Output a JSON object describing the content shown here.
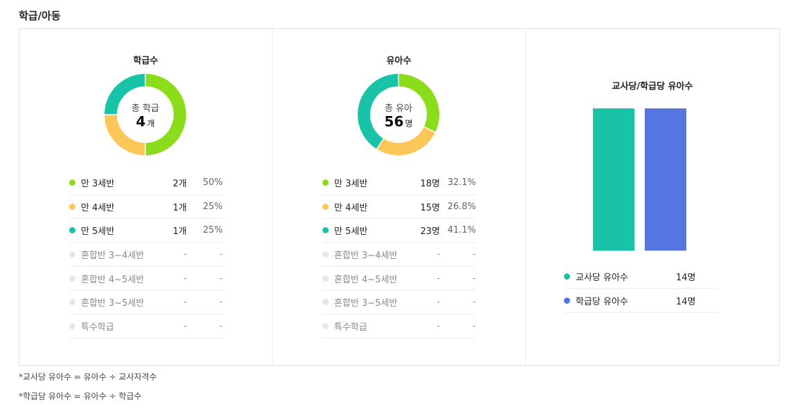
{
  "section_title": "학급/아동",
  "colors": {
    "green": "#8bdc1a",
    "yellow": "#fdc658",
    "teal": "#18c3a7",
    "blue": "#5576e0",
    "gray": "#e6e6e6"
  },
  "class_chart": {
    "title": "학급수",
    "center_label": "총 학급",
    "center_value": "4",
    "center_unit": "개",
    "items": [
      {
        "label": "만 3세반",
        "count": "2개",
        "percent": "50%",
        "color": "green",
        "value": 2
      },
      {
        "label": "만 4세반",
        "count": "1개",
        "percent": "25%",
        "color": "yellow",
        "value": 1
      },
      {
        "label": "만 5세반",
        "count": "1개",
        "percent": "25%",
        "color": "teal",
        "value": 1
      },
      {
        "label": "혼합반 3~4세반",
        "count": "-",
        "percent": "-",
        "color": "gray",
        "value": 0
      },
      {
        "label": "혼합반 4~5세반",
        "count": "-",
        "percent": "-",
        "color": "gray",
        "value": 0
      },
      {
        "label": "혼합반 3~5세반",
        "count": "-",
        "percent": "-",
        "color": "gray",
        "value": 0
      },
      {
        "label": "특수학급",
        "count": "-",
        "percent": "-",
        "color": "gray",
        "value": 0
      }
    ]
  },
  "child_chart": {
    "title": "유아수",
    "center_label": "총 유아",
    "center_value": "56",
    "center_unit": "명",
    "items": [
      {
        "label": "만 3세반",
        "count": "18명",
        "percent": "32.1%",
        "color": "green",
        "value": 18
      },
      {
        "label": "만 4세반",
        "count": "15명",
        "percent": "26.8%",
        "color": "yellow",
        "value": 15
      },
      {
        "label": "만 5세반",
        "count": "23명",
        "percent": "41.1%",
        "color": "teal",
        "value": 23
      },
      {
        "label": "혼합반 3~4세반",
        "count": "-",
        "percent": "-",
        "color": "gray",
        "value": 0
      },
      {
        "label": "혼합반 4~5세반",
        "count": "-",
        "percent": "-",
        "color": "gray",
        "value": 0
      },
      {
        "label": "혼합반 3~5세반",
        "count": "-",
        "percent": "-",
        "color": "gray",
        "value": 0
      },
      {
        "label": "특수학급",
        "count": "-",
        "percent": "-",
        "color": "gray",
        "value": 0
      }
    ]
  },
  "ratio_chart": {
    "title": "교사당/학급당 유아수",
    "items": [
      {
        "label": "교사당 유아수",
        "count": "14명",
        "color": "teal",
        "value": 14
      },
      {
        "label": "학급당 유아수",
        "count": "14명",
        "color": "blue",
        "value": 14
      }
    ]
  },
  "notes": [
    "*교사당 유아수 = 유아수 ÷ 교사자격수",
    "*학급당 유아수 = 유아수 ÷ 학급수"
  ],
  "chart_data": [
    {
      "type": "pie",
      "title": "학급수",
      "categories": [
        "만 3세반",
        "만 4세반",
        "만 5세반"
      ],
      "values": [
        2,
        1,
        1
      ]
    },
    {
      "type": "pie",
      "title": "유아수",
      "categories": [
        "만 3세반",
        "만 4세반",
        "만 5세반"
      ],
      "values": [
        18,
        15,
        23
      ]
    },
    {
      "type": "bar",
      "title": "교사당/학급당 유아수",
      "categories": [
        "교사당 유아수",
        "학급당 유아수"
      ],
      "values": [
        14,
        14
      ]
    }
  ]
}
